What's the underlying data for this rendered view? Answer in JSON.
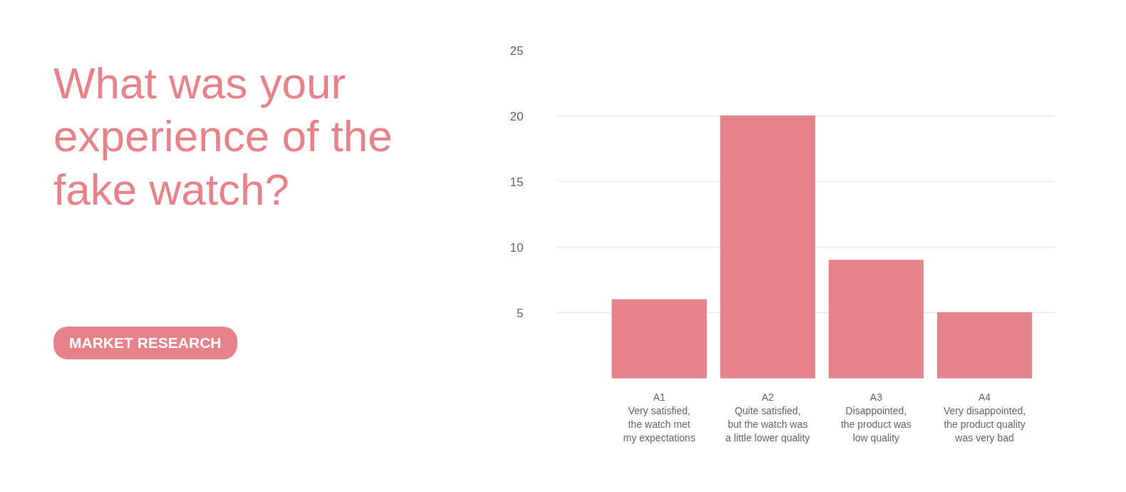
{
  "chart_data": {
    "type": "bar",
    "title": "What was your experience of the fake watch?",
    "annotations": [
      "MARKET RESEARCH"
    ],
    "categories": [
      "A1\nVery satisfied,\nthe watch met\nmy expectations",
      "A2\nQuite satisfied,\nbut the watch was\na little lower quality",
      "A3\nDisappointed,\nthe product was\nlow quality",
      "A4\nVery disappointed,\nthe product quality\nwas very bad"
    ],
    "values": [
      6,
      20,
      9,
      5
    ],
    "color": "#e6828a",
    "ylim": [
      0,
      25
    ],
    "yticks": [
      5,
      10,
      15,
      20,
      25
    ],
    "grid": "y"
  }
}
